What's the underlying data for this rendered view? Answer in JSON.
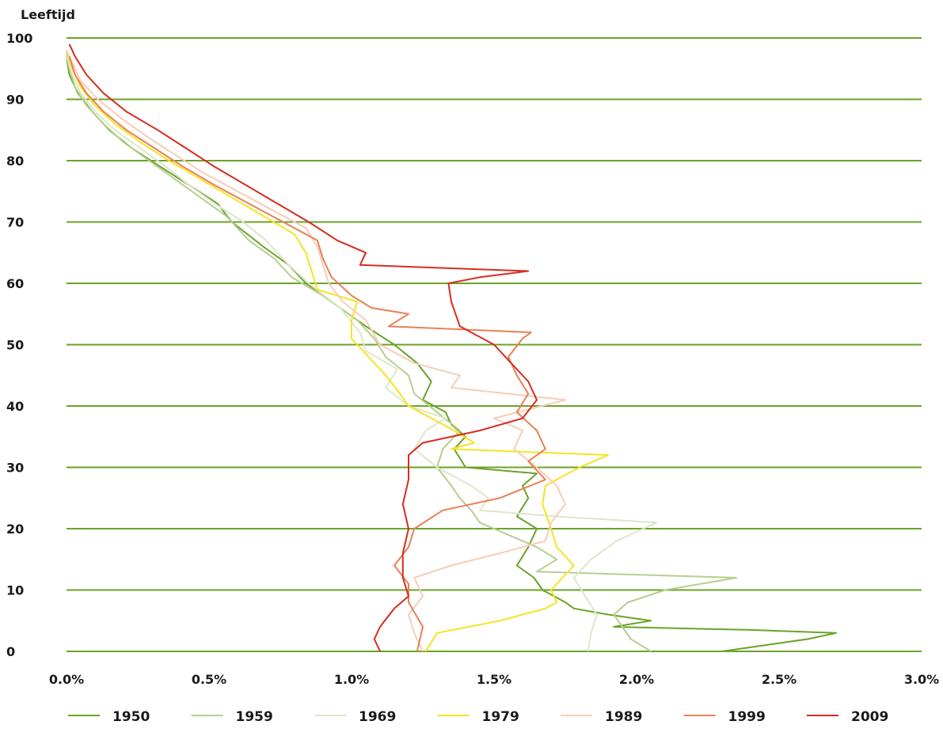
{
  "chart_data": {
    "type": "line",
    "title": "",
    "ylabel": "Leeftijd",
    "xlabel": "",
    "xlim": [
      0,
      3.0
    ],
    "ylim": [
      0,
      100
    ],
    "x_ticks": [
      "0.0%",
      "0.5%",
      "1.0%",
      "1.5%",
      "2.0%",
      "2.5%",
      "3.0%"
    ],
    "y_ticks": [
      "0",
      "10",
      "20",
      "30",
      "40",
      "50",
      "60",
      "70",
      "80",
      "90",
      "100"
    ],
    "grid": "horizontal",
    "legend_position": "bottom",
    "x_unit": "percent of population",
    "series": [
      {
        "name": "1950",
        "color": "#6aa329",
        "points": [
          [
            2.3,
            0
          ],
          [
            2.45,
            1
          ],
          [
            2.6,
            2
          ],
          [
            2.7,
            3
          ],
          [
            2.4,
            3.5
          ],
          [
            1.92,
            4
          ],
          [
            2.05,
            5
          ],
          [
            1.9,
            6
          ],
          [
            1.78,
            7
          ],
          [
            1.75,
            8
          ],
          [
            1.67,
            10
          ],
          [
            1.64,
            12
          ],
          [
            1.58,
            14
          ],
          [
            1.62,
            17
          ],
          [
            1.65,
            20
          ],
          [
            1.58,
            22
          ],
          [
            1.62,
            25
          ],
          [
            1.6,
            27
          ],
          [
            1.65,
            29
          ],
          [
            1.4,
            30
          ],
          [
            1.36,
            33
          ],
          [
            1.4,
            35
          ],
          [
            1.35,
            37
          ],
          [
            1.33,
            39
          ],
          [
            1.25,
            41
          ],
          [
            1.28,
            44
          ],
          [
            1.23,
            47
          ],
          [
            1.15,
            50
          ],
          [
            1.05,
            53
          ],
          [
            0.93,
            57
          ],
          [
            0.84,
            60
          ],
          [
            0.78,
            63
          ],
          [
            0.69,
            66
          ],
          [
            0.58,
            70
          ],
          [
            0.53,
            73
          ],
          [
            0.43,
            76
          ],
          [
            0.33,
            79
          ],
          [
            0.23,
            82
          ],
          [
            0.15,
            85
          ],
          [
            0.09,
            88
          ],
          [
            0.04,
            91
          ],
          [
            0.01,
            94
          ],
          [
            0.0,
            97
          ]
        ]
      },
      {
        "name": "1959",
        "color": "#b6cf8e",
        "points": [
          [
            2.05,
            0
          ],
          [
            1.98,
            2
          ],
          [
            1.95,
            4
          ],
          [
            1.92,
            6
          ],
          [
            1.97,
            8
          ],
          [
            2.1,
            10
          ],
          [
            2.35,
            12
          ],
          [
            1.65,
            13
          ],
          [
            1.72,
            15
          ],
          [
            1.65,
            17
          ],
          [
            1.55,
            19
          ],
          [
            1.45,
            21
          ],
          [
            1.42,
            23
          ],
          [
            1.38,
            25
          ],
          [
            1.35,
            27
          ],
          [
            1.3,
            30
          ],
          [
            1.32,
            33
          ],
          [
            1.38,
            36
          ],
          [
            1.3,
            39
          ],
          [
            1.22,
            42
          ],
          [
            1.2,
            45
          ],
          [
            1.12,
            48
          ],
          [
            1.08,
            51
          ],
          [
            1.02,
            54
          ],
          [
            0.9,
            58
          ],
          [
            0.79,
            61
          ],
          [
            0.73,
            64
          ],
          [
            0.64,
            67
          ],
          [
            0.56,
            71
          ],
          [
            0.47,
            74
          ],
          [
            0.38,
            77
          ],
          [
            0.29,
            80
          ],
          [
            0.2,
            83
          ],
          [
            0.13,
            86
          ],
          [
            0.07,
            89
          ],
          [
            0.03,
            92
          ],
          [
            0.01,
            95
          ],
          [
            0.0,
            98
          ]
        ]
      },
      {
        "name": "1969",
        "color": "#dde7c9",
        "points": [
          [
            1.83,
            0
          ],
          [
            1.84,
            3
          ],
          [
            1.86,
            6
          ],
          [
            1.82,
            9
          ],
          [
            1.78,
            12
          ],
          [
            1.84,
            15
          ],
          [
            1.93,
            18
          ],
          [
            2.07,
            21
          ],
          [
            1.72,
            22
          ],
          [
            1.45,
            23
          ],
          [
            1.48,
            25
          ],
          [
            1.42,
            27
          ],
          [
            1.3,
            30
          ],
          [
            1.22,
            33
          ],
          [
            1.26,
            36
          ],
          [
            1.33,
            38
          ],
          [
            1.2,
            40
          ],
          [
            1.12,
            43
          ],
          [
            1.16,
            46
          ],
          [
            1.05,
            49
          ],
          [
            1.03,
            52
          ],
          [
            0.96,
            56
          ],
          [
            0.85,
            60
          ],
          [
            0.78,
            63
          ],
          [
            0.7,
            67
          ],
          [
            0.62,
            70
          ],
          [
            0.52,
            73
          ],
          [
            0.43,
            76
          ],
          [
            0.35,
            79
          ],
          [
            0.26,
            82
          ],
          [
            0.17,
            85
          ],
          [
            0.1,
            88
          ],
          [
            0.05,
            91
          ],
          [
            0.02,
            94
          ],
          [
            0.0,
            97
          ]
        ]
      },
      {
        "name": "1979",
        "color": "#f5e420",
        "points": [
          [
            1.26,
            0
          ],
          [
            1.3,
            3
          ],
          [
            1.52,
            5
          ],
          [
            1.68,
            7
          ],
          [
            1.72,
            8
          ],
          [
            1.7,
            10
          ],
          [
            1.78,
            14
          ],
          [
            1.72,
            17
          ],
          [
            1.7,
            20
          ],
          [
            1.67,
            24
          ],
          [
            1.68,
            27
          ],
          [
            1.8,
            30
          ],
          [
            1.9,
            32
          ],
          [
            1.35,
            33
          ],
          [
            1.43,
            34
          ],
          [
            1.36,
            36
          ],
          [
            1.28,
            38
          ],
          [
            1.2,
            40
          ],
          [
            1.17,
            42
          ],
          [
            1.12,
            45
          ],
          [
            1.06,
            48
          ],
          [
            1.0,
            51
          ],
          [
            1.0,
            54
          ],
          [
            1.02,
            57
          ],
          [
            0.88,
            59
          ],
          [
            0.86,
            62
          ],
          [
            0.84,
            65
          ],
          [
            0.8,
            68
          ],
          [
            0.69,
            71
          ],
          [
            0.58,
            74
          ],
          [
            0.47,
            77
          ],
          [
            0.36,
            80
          ],
          [
            0.26,
            83
          ],
          [
            0.17,
            86
          ],
          [
            0.1,
            89
          ],
          [
            0.05,
            92
          ],
          [
            0.02,
            95
          ],
          [
            0.0,
            98
          ]
        ]
      },
      {
        "name": "1989",
        "color": "#f6cdb8",
        "points": [
          [
            1.25,
            0
          ],
          [
            1.22,
            3
          ],
          [
            1.2,
            6
          ],
          [
            1.25,
            9
          ],
          [
            1.22,
            12
          ],
          [
            1.35,
            14
          ],
          [
            1.52,
            16
          ],
          [
            1.68,
            18
          ],
          [
            1.7,
            21
          ],
          [
            1.75,
            24
          ],
          [
            1.72,
            27
          ],
          [
            1.65,
            30
          ],
          [
            1.57,
            33
          ],
          [
            1.6,
            36
          ],
          [
            1.5,
            38
          ],
          [
            1.75,
            41
          ],
          [
            1.35,
            43
          ],
          [
            1.38,
            45
          ],
          [
            1.22,
            47
          ],
          [
            1.1,
            50
          ],
          [
            1.05,
            54
          ],
          [
            0.97,
            57
          ],
          [
            0.92,
            60
          ],
          [
            0.9,
            63
          ],
          [
            0.88,
            66
          ],
          [
            0.84,
            69
          ],
          [
            0.72,
            72
          ],
          [
            0.6,
            75
          ],
          [
            0.48,
            78
          ],
          [
            0.38,
            81
          ],
          [
            0.28,
            84
          ],
          [
            0.19,
            87
          ],
          [
            0.11,
            90
          ],
          [
            0.05,
            93
          ],
          [
            0.02,
            96
          ],
          [
            0.0,
            98
          ]
        ]
      },
      {
        "name": "1999",
        "color": "#e98055",
        "points": [
          [
            1.23,
            0
          ],
          [
            1.25,
            4
          ],
          [
            1.2,
            8
          ],
          [
            1.2,
            11
          ],
          [
            1.15,
            14
          ],
          [
            1.2,
            17
          ],
          [
            1.22,
            20
          ],
          [
            1.32,
            23
          ],
          [
            1.52,
            25
          ],
          [
            1.68,
            28
          ],
          [
            1.62,
            31
          ],
          [
            1.68,
            33
          ],
          [
            1.65,
            36
          ],
          [
            1.58,
            39
          ],
          [
            1.62,
            42
          ],
          [
            1.58,
            45
          ],
          [
            1.55,
            48
          ],
          [
            1.6,
            51
          ],
          [
            1.63,
            52
          ],
          [
            1.13,
            53
          ],
          [
            1.2,
            55
          ],
          [
            1.07,
            56
          ],
          [
            1.0,
            58
          ],
          [
            0.93,
            61
          ],
          [
            0.9,
            64
          ],
          [
            0.88,
            67
          ],
          [
            0.76,
            70
          ],
          [
            0.64,
            73
          ],
          [
            0.52,
            76
          ],
          [
            0.41,
            79
          ],
          [
            0.31,
            82
          ],
          [
            0.21,
            85
          ],
          [
            0.13,
            88
          ],
          [
            0.07,
            91
          ],
          [
            0.03,
            94
          ],
          [
            0.01,
            97
          ]
        ]
      },
      {
        "name": "2009",
        "color": "#d62d20",
        "points": [
          [
            1.1,
            0
          ],
          [
            1.08,
            2
          ],
          [
            1.1,
            4
          ],
          [
            1.15,
            7
          ],
          [
            1.2,
            9
          ],
          [
            1.18,
            12
          ],
          [
            1.18,
            16
          ],
          [
            1.2,
            20
          ],
          [
            1.18,
            24
          ],
          [
            1.2,
            28
          ],
          [
            1.2,
            32
          ],
          [
            1.25,
            34
          ],
          [
            1.45,
            36
          ],
          [
            1.6,
            38
          ],
          [
            1.65,
            41
          ],
          [
            1.62,
            44
          ],
          [
            1.56,
            47
          ],
          [
            1.5,
            50
          ],
          [
            1.38,
            53
          ],
          [
            1.35,
            57
          ],
          [
            1.34,
            60
          ],
          [
            1.45,
            61
          ],
          [
            1.62,
            62
          ],
          [
            1.03,
            63
          ],
          [
            1.05,
            65
          ],
          [
            0.95,
            67
          ],
          [
            0.85,
            70
          ],
          [
            0.74,
            73
          ],
          [
            0.63,
            76
          ],
          [
            0.52,
            79
          ],
          [
            0.42,
            82
          ],
          [
            0.32,
            85
          ],
          [
            0.21,
            88
          ],
          [
            0.13,
            91
          ],
          [
            0.07,
            94
          ],
          [
            0.03,
            97
          ],
          [
            0.01,
            99
          ]
        ]
      }
    ]
  }
}
